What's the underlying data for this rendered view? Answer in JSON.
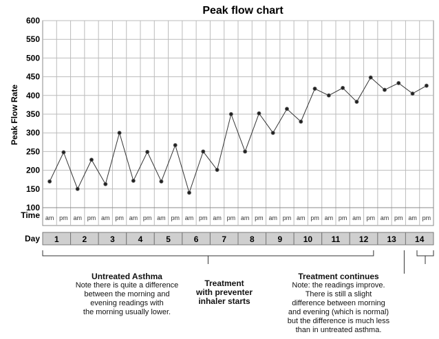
{
  "chart_data": {
    "type": "line",
    "title": "Peak flow chart",
    "ylabel": "Peak Flow Rate",
    "ylim": [
      100,
      600
    ],
    "yticks": [
      100,
      150,
      200,
      250,
      300,
      350,
      400,
      450,
      500,
      550,
      600
    ],
    "grid": true,
    "time_label": "Time",
    "day_label": "Day",
    "slots": [
      "am",
      "pm",
      "am",
      "pm",
      "am",
      "pm",
      "am",
      "pm",
      "am",
      "pm",
      "am",
      "pm",
      "am",
      "pm",
      "am",
      "pm",
      "am",
      "pm",
      "am",
      "pm",
      "am",
      "pm",
      "am",
      "pm",
      "am",
      "pm",
      "am",
      "pm"
    ],
    "days": [
      "1",
      "2",
      "3",
      "4",
      "5",
      "6",
      "7",
      "8",
      "9",
      "10",
      "11",
      "12",
      "13",
      "14"
    ],
    "series": [
      {
        "values": [
          170,
          248,
          150,
          228,
          163,
          300,
          172,
          249,
          170,
          267,
          140,
          250,
          201,
          350,
          250,
          352,
          300,
          364,
          330,
          418,
          400,
          420,
          383,
          448,
          415,
          433,
          405,
          426
        ]
      }
    ]
  },
  "annotations": {
    "untreated_title": "Untreated Asthma",
    "untreated_text": [
      "Note there is quite a difference",
      "between the morning and",
      "evening readings with",
      "the morning usually lower."
    ],
    "treatment_title": [
      "Treatment",
      "with preventer",
      "inhaler starts"
    ],
    "continues_title": "Treatment continues",
    "continues_text": [
      "Note: the readings improve.",
      "There is still a slight",
      "difference between morning",
      "and evening (which is normal)",
      "but the difference is much less",
      "than in untreated asthma."
    ]
  }
}
